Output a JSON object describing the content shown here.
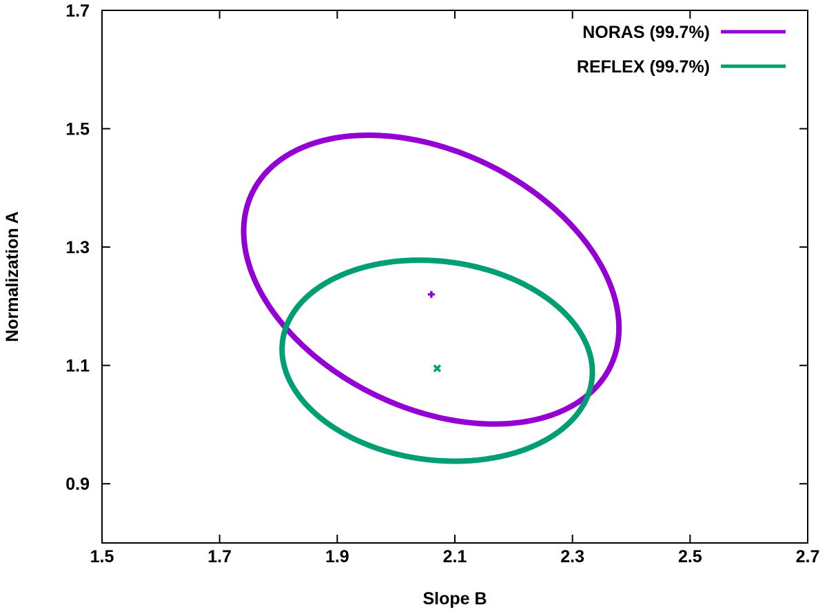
{
  "chart_data": {
    "type": "scatter",
    "title": "",
    "xlabel": "Slope B",
    "ylabel": "Normalization A",
    "xlim": [
      1.5,
      2.7
    ],
    "ylim": [
      0.8,
      1.7
    ],
    "x_ticks": [
      "1.5",
      "1.7",
      "1.9",
      "2.1",
      "2.3",
      "2.5",
      "2.7"
    ],
    "y_ticks": [
      "0.9",
      "1.1",
      "1.3",
      "1.5",
      "1.7"
    ],
    "grid": false,
    "legend_position": "top-right",
    "series": [
      {
        "name": "NORAS (99.7%)",
        "color": "#9400d3",
        "marker": "plus",
        "center": {
          "x": 2.06,
          "y": 1.22
        },
        "contour": {
          "type": "ellipse",
          "center": {
            "x": 2.06,
            "y": 1.245
          },
          "semi_major": 0.338,
          "semi_minor": 0.217,
          "angle_deg": -25.5,
          "x_range": [
            1.745,
            2.375
          ],
          "y_range": [
            1.0,
            1.49
          ]
        }
      },
      {
        "name": "REFLEX (99.7%)",
        "color": "#009e73",
        "marker": "cross",
        "center": {
          "x": 2.07,
          "y": 1.095
        },
        "contour": {
          "type": "ellipse",
          "center": {
            "x": 2.07,
            "y": 1.108
          },
          "semi_major": 0.265,
          "semi_minor": 0.168,
          "angle_deg": -7,
          "x_range": [
            1.81,
            2.335
          ],
          "y_range": [
            0.94,
            1.28
          ]
        }
      }
    ]
  }
}
